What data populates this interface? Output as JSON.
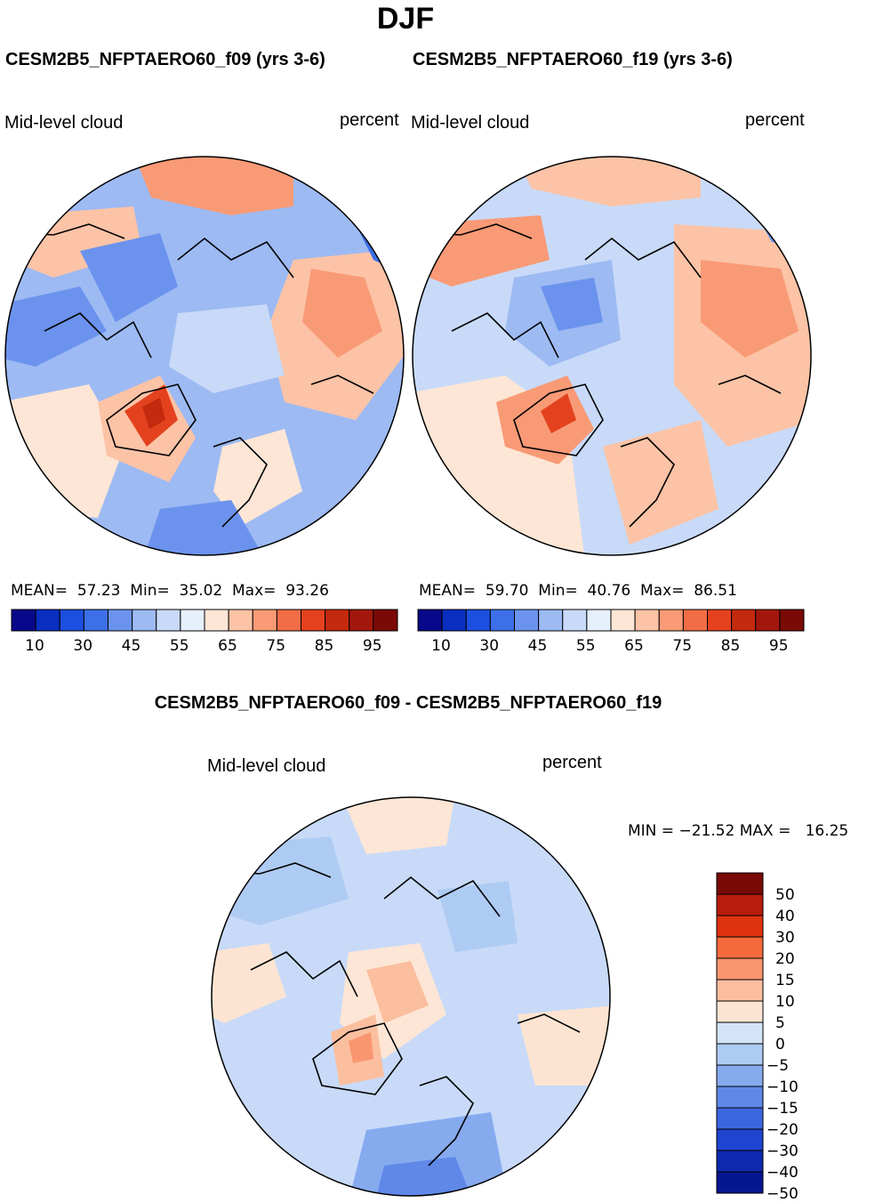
{
  "season": "DJF",
  "panels": [
    {
      "case_title": "CESM2B5_NFPTAERO60_f09 (yrs 3-6)",
      "variable": "Mid-level cloud",
      "units": "percent",
      "stats": {
        "mean_label": "MEAN=",
        "mean": "57.23",
        "min_label": "Min=",
        "min": "35.02",
        "max_label": "Max=",
        "max": "93.26"
      }
    },
    {
      "case_title": "CESM2B5_NFPTAERO60_f19 (yrs 3-6)",
      "variable": "Mid-level cloud",
      "units": "percent",
      "stats": {
        "mean_label": "MEAN=",
        "mean": "59.70",
        "min_label": "Min=",
        "min": "40.76",
        "max_label": "Max=",
        "max": "86.51"
      }
    }
  ],
  "abs_colorbar": {
    "colors": [
      "#08088a",
      "#0a2fc0",
      "#1c4fe0",
      "#3d6fe8",
      "#6b93ee",
      "#9dbaf3",
      "#c8daf8",
      "#e6f0fb",
      "#fde6d6",
      "#fcc3a6",
      "#f99a76",
      "#f26d46",
      "#e4421e",
      "#c42a0e",
      "#a3170c",
      "#7a0a06"
    ],
    "tick_labels": [
      "10",
      "30",
      "45",
      "55",
      "65",
      "75",
      "85",
      "95"
    ]
  },
  "diff_panel": {
    "title": "CESM2B5_NFPTAERO60_f09 - CESM2B5_NFPTAERO60_f19",
    "variable": "Mid-level cloud",
    "units": "percent",
    "minmax_text": "MIN = −21.52 MAX =   16.25"
  },
  "diff_colorbar": {
    "colors": [
      "#7a0a06",
      "#b81c0c",
      "#e0330f",
      "#f56a3d",
      "#f99670",
      "#fbbf9f",
      "#fde4d2",
      "#d3e4f8",
      "#aecbf3",
      "#86aaee",
      "#5f88e8",
      "#3c66e0",
      "#1f45d0",
      "#0f2ab0",
      "#061690"
    ],
    "tick_labels": [
      "50",
      "40",
      "30",
      "20",
      "15",
      "10",
      "5",
      "0",
      "−5",
      "−10",
      "−15",
      "−20",
      "−30",
      "−40",
      "−50"
    ]
  },
  "map_palette": {
    "blue_deep": "#3d6fe8",
    "blue_mid": "#6b93ee",
    "blue_light": "#9dbaf3",
    "blue_pale": "#c8daf8",
    "blue_faint": "#e6f0fb",
    "orange_pale": "#fde6d6",
    "orange_light": "#fcc3a6",
    "orange_mid": "#f99a76",
    "red_mid": "#e4421e",
    "red_dark": "#c42a0e"
  }
}
